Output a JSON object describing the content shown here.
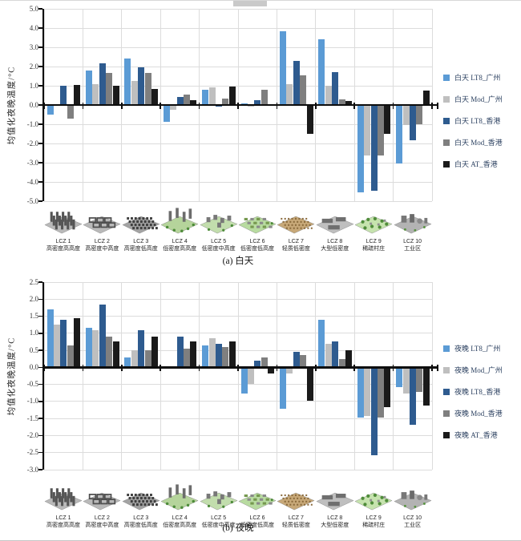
{
  "figure": {
    "top_artifact": "page-edge-crop",
    "colors": {
      "grid": "#dcdcdc",
      "axis": "#0d0d0d",
      "lt8_gz": "#5B9BD5",
      "mod_gz": "#BFBFBF",
      "lt8_hk": "#2E5B8F",
      "mod_hk": "#7F7F7F",
      "at_hk": "#1A1A1A"
    }
  },
  "chart_data": [
    {
      "type": "bar",
      "title": "(a) 白天",
      "ylabel": "均值化夜晚温度/°C",
      "ylim": [
        -5.0,
        5.0
      ],
      "ystep": 1.0,
      "grid": true,
      "legend_position": "right",
      "categories": [
        {
          "label": "LCZ 1",
          "sublabel": "高密度高高度",
          "icon": "lcz1-compact-highrise-icon"
        },
        {
          "label": "LCZ 2",
          "sublabel": "高密度中高度",
          "icon": "lcz2-compact-midrise-icon"
        },
        {
          "label": "LCZ 3",
          "sublabel": "高密度低高度",
          "icon": "lcz3-compact-lowrise-icon"
        },
        {
          "label": "LCZ 4",
          "sublabel": "低密度高高度",
          "icon": "lcz4-open-highrise-icon"
        },
        {
          "label": "LCZ 5",
          "sublabel": "低密度中高度",
          "icon": "lcz5-open-midrise-icon"
        },
        {
          "label": "LCZ 6",
          "sublabel": "低密度低高度",
          "icon": "lcz6-open-lowrise-icon"
        },
        {
          "label": "LCZ 7",
          "sublabel": "轻质低密度",
          "icon": "lcz7-lightweight-lowrise-icon"
        },
        {
          "label": "LCZ 8",
          "sublabel": "大型低密度",
          "icon": "lcz8-large-lowrise-icon"
        },
        {
          "label": "LCZ 9",
          "sublabel": "稀疏村庄",
          "icon": "lcz9-sparse-village-icon"
        },
        {
          "label": "LCZ 10",
          "sublabel": "工业区",
          "icon": "lcz10-industrial-icon"
        }
      ],
      "series": [
        {
          "name": "白天 LT8_广州",
          "color": "#5B9BD5",
          "values": [
            -0.45,
            1.8,
            2.4,
            -0.85,
            0.8,
            0.1,
            3.85,
            3.4,
            -4.5,
            -3.0
          ]
        },
        {
          "name": "白天 Mod_广州",
          "color": "#BFBFBF",
          "values": [
            0.05,
            1.1,
            1.25,
            -0.2,
            0.9,
            -0.05,
            1.1,
            1.0,
            -2.6,
            -1.0
          ]
        },
        {
          "name": "白天 LT8_香港",
          "color": "#2E5B8F",
          "values": [
            1.0,
            2.15,
            1.95,
            0.4,
            -0.05,
            0.25,
            2.3,
            1.7,
            -4.4,
            -1.8
          ]
        },
        {
          "name": "白天 Mod_香港",
          "color": "#7F7F7F",
          "values": [
            -0.65,
            1.65,
            1.65,
            0.55,
            0.35,
            0.8,
            1.55,
            0.3,
            -2.6,
            -0.95
          ]
        },
        {
          "name": "白天 AT_香港",
          "color": "#1A1A1A",
          "values": [
            1.05,
            1.0,
            0.85,
            0.25,
            0.95,
            0.0,
            -1.45,
            0.2,
            -1.45,
            0.75
          ]
        }
      ]
    },
    {
      "type": "bar",
      "title": "(b) 夜晚",
      "ylabel": "均值化夜晚温度/°C",
      "ylim": [
        -3.0,
        2.5
      ],
      "ystep": 0.5,
      "grid": true,
      "legend_position": "right",
      "categories": [
        {
          "label": "LCZ 1",
          "sublabel": "高密度高高度",
          "icon": "lcz1-compact-highrise-icon"
        },
        {
          "label": "LCZ 2",
          "sublabel": "高密度中高度",
          "icon": "lcz2-compact-midrise-icon"
        },
        {
          "label": "LCZ 3",
          "sublabel": "高密度低高度",
          "icon": "lcz3-compact-lowrise-icon"
        },
        {
          "label": "LCZ 4",
          "sublabel": "低密度高高度",
          "icon": "lcz4-open-highrise-icon"
        },
        {
          "label": "LCZ 5",
          "sublabel": "低密度中高度",
          "icon": "lcz5-open-midrise-icon"
        },
        {
          "label": "LCZ 6",
          "sublabel": "低密度低高度",
          "icon": "lcz6-open-lowrise-icon"
        },
        {
          "label": "LCZ 7",
          "sublabel": "轻质低密度",
          "icon": "lcz7-lightweight-lowrise-icon"
        },
        {
          "label": "LCZ 8",
          "sublabel": "大型低密度",
          "icon": "lcz8-large-lowrise-icon"
        },
        {
          "label": "LCZ 9",
          "sublabel": "稀疏村庄",
          "icon": "lcz9-sparse-village-icon"
        },
        {
          "label": "LCZ 10",
          "sublabel": "工业区",
          "icon": "lcz10-industrial-icon"
        }
      ],
      "series": [
        {
          "name": "夜晚 LT8_广州",
          "color": "#5B9BD5",
          "values": [
            1.7,
            1.15,
            0.3,
            0.0,
            0.65,
            -0.75,
            -1.2,
            1.4,
            -1.45,
            -0.55
          ]
        },
        {
          "name": "夜晚 Mod_广州",
          "color": "#BFBFBF",
          "values": [
            1.25,
            1.1,
            0.5,
            0.0,
            0.85,
            -0.45,
            -0.15,
            0.7,
            -1.4,
            -0.75
          ]
        },
        {
          "name": "夜晚 LT8_香港",
          "color": "#2E5B8F",
          "values": [
            1.4,
            1.85,
            1.1,
            0.9,
            0.7,
            0.2,
            0.45,
            0.75,
            -2.55,
            -1.65
          ]
        },
        {
          "name": "夜晚 Mod_香港",
          "color": "#7F7F7F",
          "values": [
            0.65,
            0.9,
            0.5,
            0.55,
            0.6,
            0.3,
            0.35,
            0.25,
            -1.45,
            -0.7
          ]
        },
        {
          "name": "夜晚 AT_香港",
          "color": "#1A1A1A",
          "values": [
            1.45,
            0.75,
            0.9,
            0.75,
            0.75,
            -0.15,
            -0.95,
            0.5,
            -1.15,
            -1.1
          ]
        }
      ]
    }
  ]
}
